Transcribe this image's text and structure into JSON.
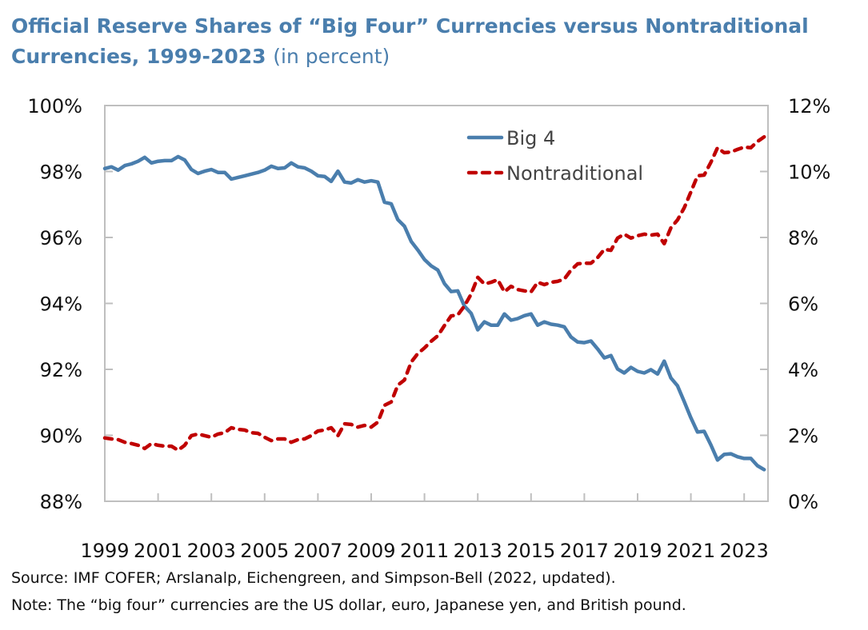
{
  "chart_data": {
    "type": "line",
    "title": "Official Reserve Shares of “Big Four” Currencies versus Nontraditional Currencies, 1999-2023",
    "subtitle": "(in percent)",
    "x_start": 1999,
    "x_frequency": "quarterly",
    "x_ticks": [
      "1999",
      "2001",
      "2003",
      "2005",
      "2007",
      "2009",
      "2011",
      "2013",
      "2015",
      "2017",
      "2019",
      "2021",
      "2023"
    ],
    "xlim": [
      1999,
      2024
    ],
    "y_left": {
      "lim": [
        88,
        100
      ],
      "ticks": [
        "88%",
        "90%",
        "92%",
        "94%",
        "96%",
        "98%",
        "100%"
      ]
    },
    "y_right": {
      "lim": [
        0,
        12
      ],
      "ticks": [
        "0%",
        "2%",
        "4%",
        "6%",
        "8%",
        "10%",
        "12%"
      ]
    },
    "grid": false,
    "legend_position": "top-center",
    "series": [
      {
        "name": "Big 4",
        "axis": "left",
        "color": "#4A7EAD",
        "style": "solid",
        "values": [
          98.09,
          98.14,
          98.04,
          98.18,
          98.23,
          98.31,
          98.43,
          98.26,
          98.31,
          98.33,
          98.33,
          98.45,
          98.35,
          98.06,
          97.94,
          98.01,
          98.06,
          97.97,
          97.97,
          97.77,
          97.82,
          97.87,
          97.92,
          97.97,
          98.04,
          98.16,
          98.09,
          98.11,
          98.26,
          98.14,
          98.11,
          98.01,
          97.87,
          97.85,
          97.7,
          98.01,
          97.68,
          97.65,
          97.75,
          97.68,
          97.72,
          97.68,
          97.07,
          97.02,
          96.54,
          96.34,
          95.88,
          95.62,
          95.33,
          95.14,
          95.01,
          94.6,
          94.36,
          94.38,
          93.92,
          93.7,
          93.2,
          93.44,
          93.34,
          93.34,
          93.68,
          93.49,
          93.54,
          93.63,
          93.68,
          93.34,
          93.44,
          93.37,
          93.34,
          93.29,
          92.98,
          92.83,
          92.81,
          92.86,
          92.62,
          92.35,
          92.42,
          92.01,
          91.89,
          92.06,
          91.94,
          91.89,
          91.99,
          91.86,
          92.25,
          91.74,
          91.5,
          91.02,
          90.53,
          90.1,
          90.12,
          89.71,
          89.25,
          89.42,
          89.44,
          89.35,
          89.3,
          89.3,
          89.08,
          88.96
        ]
      },
      {
        "name": "Nontraditional",
        "axis": "right",
        "color": "#C00000",
        "style": "dashed",
        "values": [
          1.92,
          1.89,
          1.87,
          1.79,
          1.75,
          1.7,
          1.6,
          1.75,
          1.7,
          1.67,
          1.67,
          1.55,
          1.7,
          1.99,
          2.04,
          1.99,
          1.94,
          2.04,
          2.08,
          2.23,
          2.18,
          2.16,
          2.08,
          2.06,
          1.94,
          1.84,
          1.89,
          1.89,
          1.79,
          1.87,
          1.89,
          1.99,
          2.13,
          2.16,
          2.23,
          1.99,
          2.35,
          2.33,
          2.25,
          2.3,
          2.25,
          2.4,
          2.91,
          3.01,
          3.52,
          3.68,
          4.22,
          4.48,
          4.65,
          4.85,
          5.02,
          5.33,
          5.62,
          5.65,
          5.92,
          6.28,
          6.79,
          6.59,
          6.64,
          6.72,
          6.35,
          6.52,
          6.42,
          6.38,
          6.35,
          6.64,
          6.57,
          6.64,
          6.67,
          6.74,
          7.01,
          7.2,
          7.22,
          7.22,
          7.39,
          7.64,
          7.61,
          7.98,
          8.1,
          7.98,
          8.05,
          8.1,
          8.07,
          8.1,
          7.81,
          8.29,
          8.53,
          8.9,
          9.38,
          9.87,
          9.89,
          10.28,
          10.72,
          10.57,
          10.59,
          10.67,
          10.74,
          10.72,
          10.91,
          11.05
        ]
      }
    ]
  },
  "header": {
    "title_bold": "Official Reserve Shares of “Big Four” Currencies versus Nontraditional Currencies, 1999-2023",
    "title_unit": "(in percent)"
  },
  "footer": {
    "source": "Source: IMF COFER; Arslanalp, Eichengreen, and Simpson-Bell (2022, updated).",
    "note": "Note: The “big four” currencies are the US dollar, euro, Japanese yen, and British pound."
  }
}
